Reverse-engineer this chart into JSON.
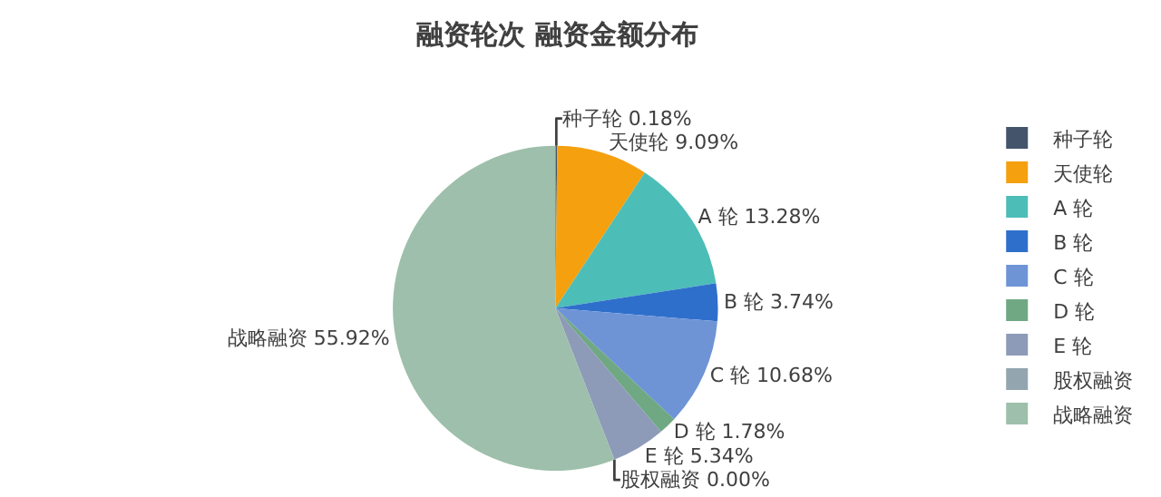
{
  "chart_data": {
    "type": "pie",
    "title": "融资轮次 融资金额分布",
    "categories": [
      "种子轮",
      "天使轮",
      "A 轮",
      "B 轮",
      "C 轮",
      "D 轮",
      "E 轮",
      "股权融资",
      "战略融资"
    ],
    "values": [
      0.18,
      9.09,
      13.28,
      3.74,
      10.68,
      1.78,
      5.34,
      0.0,
      55.92
    ],
    "value_labels": [
      "0.18%",
      "9.09%",
      "13.28%",
      "3.74%",
      "10.68%",
      "1.78%",
      "5.34%",
      "0.00%",
      "55.92%"
    ],
    "colors": [
      "#44546a",
      "#f5a00f",
      "#4dbdb8",
      "#2e6fcc",
      "#6e94d6",
      "#6fa882",
      "#8d9ab8",
      "#93a5ae",
      "#9dbfab"
    ],
    "legend": "right"
  }
}
